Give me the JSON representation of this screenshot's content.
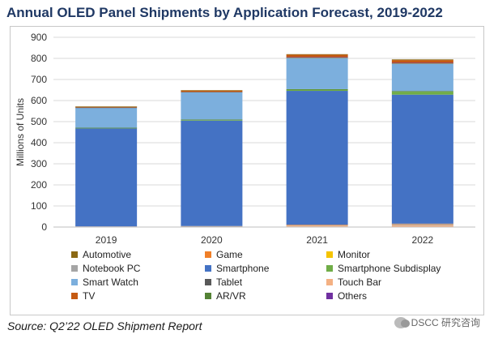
{
  "chart_data": {
    "type": "bar",
    "stacked": true,
    "title": "Annual OLED Panel Shipments by Application Forecast, 2019-2022",
    "xlabel": "",
    "ylabel": "Millions of Units",
    "ylim": [
      0,
      900
    ],
    "yticks": [
      0,
      100,
      200,
      300,
      400,
      500,
      600,
      700,
      800,
      900
    ],
    "grid": true,
    "categories": [
      "2019",
      "2020",
      "2021",
      "2022"
    ],
    "series": [
      {
        "name": "Automotive",
        "color": "#8b6914",
        "values": [
          1,
          1,
          2,
          3
        ]
      },
      {
        "name": "Game",
        "color": "#f07f28",
        "values": [
          0,
          0,
          1,
          2
        ]
      },
      {
        "name": "Monitor",
        "color": "#f5c400",
        "values": [
          0,
          0,
          1,
          1
        ]
      },
      {
        "name": "Notebook PC",
        "color": "#a5a5a5",
        "values": [
          0,
          1,
          3,
          5
        ]
      },
      {
        "name": "Smartphone",
        "color": "#4472c4",
        "values": [
          465,
          500,
          635,
          612
        ]
      },
      {
        "name": "Smartphone Subdisplay",
        "color": "#70ad47",
        "values": [
          2,
          4,
          6,
          14
        ]
      },
      {
        "name": "Smart Watch",
        "color": "#7cafdd",
        "values": [
          95,
          130,
          148,
          130
        ]
      },
      {
        "name": "Tablet",
        "color": "#595959",
        "values": [
          1,
          1,
          2,
          2
        ]
      },
      {
        "name": "Touch Bar",
        "color": "#f4b183",
        "values": [
          3,
          4,
          7,
          9
        ]
      },
      {
        "name": "TV",
        "color": "#c55a11",
        "values": [
          4,
          7,
          12,
          13
        ]
      },
      {
        "name": "AR/VR",
        "color": "#548235",
        "values": [
          1,
          1,
          2,
          3
        ]
      },
      {
        "name": "Others",
        "color": "#7030a0",
        "values": [
          0,
          0,
          1,
          1
        ]
      }
    ],
    "stack_order": [
      "Touch Bar",
      "Notebook PC",
      "Game",
      "Smartphone",
      "Smartphone Subdisplay",
      "AR/VR",
      "Smart Watch",
      "Tablet",
      "Monitor",
      "Others",
      "TV",
      "Automotive"
    ]
  },
  "source": "Source:  Q2’22 OLED Shipment Report",
  "watermark": "DSCC 研究咨询"
}
